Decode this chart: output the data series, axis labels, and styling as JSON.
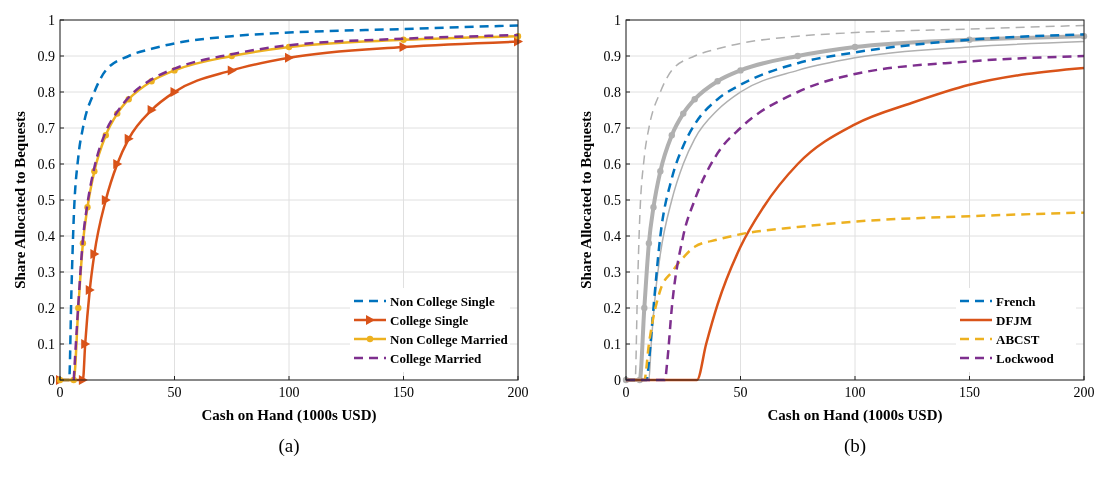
{
  "chart_data": [
    {
      "type": "line",
      "xlabel": "Cash on Hand (1000s USD)",
      "ylabel": "Share Allocated to Bequests",
      "annotations": [
        "(a)"
      ],
      "xlim": [
        0,
        200
      ],
      "xticks": [
        0,
        50,
        100,
        150,
        200
      ],
      "ylim": [
        0,
        1
      ],
      "yticks": [
        0,
        0.1,
        0.2,
        0.3,
        0.4,
        0.5,
        0.6,
        0.7,
        0.8,
        0.9,
        1
      ],
      "grid": true,
      "legend": "bottom right",
      "series": [
        {
          "name": "Non College Single",
          "color": "#0072bd",
          "line_style": "dashed",
          "x": [
            0,
            4,
            5,
            6,
            8,
            10,
            15,
            20,
            30,
            40,
            50,
            75,
            100,
            150,
            200
          ],
          "values": [
            0,
            0,
            0.25,
            0.45,
            0.62,
            0.7,
            0.8,
            0.86,
            0.9,
            0.92,
            0.935,
            0.955,
            0.965,
            0.975,
            0.985
          ]
        },
        {
          "name": "College Single",
          "color": "#d95319",
          "line_style": "solid",
          "marker": "triangle",
          "x": [
            0,
            10,
            11,
            13,
            15,
            20,
            25,
            30,
            40,
            50,
            75,
            100,
            150,
            200
          ],
          "values": [
            0,
            0,
            0.1,
            0.25,
            0.35,
            0.5,
            0.6,
            0.67,
            0.75,
            0.8,
            0.86,
            0.895,
            0.925,
            0.94
          ]
        },
        {
          "name": "Non College Married",
          "color": "#edb120",
          "line_style": "solid",
          "marker": "circle",
          "x": [
            0,
            6,
            8,
            10,
            12,
            15,
            20,
            25,
            30,
            40,
            50,
            75,
            100,
            150,
            200
          ],
          "values": [
            0,
            0,
            0.2,
            0.38,
            0.48,
            0.58,
            0.68,
            0.74,
            0.78,
            0.83,
            0.86,
            0.9,
            0.925,
            0.945,
            0.955
          ]
        },
        {
          "name": "College Married",
          "color": "#7e2f8e",
          "line_style": "dashed",
          "x": [
            6,
            8,
            10,
            12,
            15,
            20,
            25,
            30,
            40,
            50,
            75,
            100,
            150,
            200
          ],
          "values": [
            0,
            0.21,
            0.39,
            0.49,
            0.59,
            0.69,
            0.745,
            0.785,
            0.835,
            0.865,
            0.905,
            0.93,
            0.948,
            0.958
          ]
        }
      ]
    },
    {
      "type": "line",
      "xlabel": "Cash on Hand (1000s USD)",
      "ylabel": "Share Allocated to Bequests",
      "annotations": [
        "(b)"
      ],
      "xlim": [
        0,
        200
      ],
      "xticks": [
        0,
        50,
        100,
        150,
        200
      ],
      "ylim": [
        0,
        1
      ],
      "yticks": [
        0,
        0.1,
        0.2,
        0.3,
        0.4,
        0.5,
        0.6,
        0.7,
        0.8,
        0.9,
        1
      ],
      "grid": true,
      "legend": "bottom right",
      "series": [
        {
          "color": "#b0b0b0",
          "line_style": "dashed",
          "x": [
            0,
            4,
            5,
            6,
            8,
            10,
            15,
            20,
            30,
            40,
            50,
            75,
            100,
            150,
            200
          ],
          "values": [
            0,
            0,
            0.25,
            0.45,
            0.62,
            0.7,
            0.8,
            0.86,
            0.9,
            0.92,
            0.935,
            0.955,
            0.965,
            0.975,
            0.985
          ]
        },
        {
          "color": "#b0b0b0",
          "line_style": "solid",
          "x": [
            0,
            10,
            11,
            13,
            15,
            20,
            25,
            30,
            40,
            50,
            75,
            100,
            150,
            200
          ],
          "values": [
            0,
            0,
            0.1,
            0.25,
            0.35,
            0.5,
            0.6,
            0.67,
            0.75,
            0.8,
            0.86,
            0.895,
            0.925,
            0.94
          ]
        },
        {
          "color": "#b0b0b0",
          "line_style": "solid",
          "marker": "circle",
          "x": [
            0,
            6,
            8,
            10,
            12,
            15,
            20,
            25,
            30,
            40,
            50,
            75,
            100,
            150,
            200
          ],
          "values": [
            0,
            0,
            0.2,
            0.38,
            0.48,
            0.58,
            0.68,
            0.74,
            0.78,
            0.83,
            0.86,
            0.9,
            0.925,
            0.945,
            0.955
          ]
        },
        {
          "name": "French",
          "color": "#0072bd",
          "line_style": "dashed",
          "x": [
            0,
            9,
            10,
            12,
            15,
            20,
            25,
            30,
            40,
            50,
            75,
            100,
            150,
            200
          ],
          "values": [
            0,
            0,
            0.05,
            0.2,
            0.4,
            0.56,
            0.65,
            0.71,
            0.78,
            0.82,
            0.88,
            0.91,
            0.945,
            0.96
          ]
        },
        {
          "name": "DFJM",
          "color": "#d95319",
          "line_style": "solid",
          "x": [
            0,
            31,
            35,
            40,
            50,
            60,
            75,
            100,
            125,
            150,
            175,
            200
          ],
          "values": [
            0,
            0,
            0.1,
            0.21,
            0.37,
            0.48,
            0.6,
            0.71,
            0.77,
            0.82,
            0.85,
            0.867
          ]
        },
        {
          "name": "ABCST",
          "color": "#edb120",
          "line_style": "dashed",
          "x": [
            0,
            8,
            10,
            15,
            20,
            25,
            30,
            40,
            50,
            75,
            100,
            150,
            200
          ],
          "values": [
            0,
            0,
            0.1,
            0.25,
            0.3,
            0.34,
            0.37,
            0.39,
            0.405,
            0.425,
            0.44,
            0.455,
            0.465
          ]
        },
        {
          "name": "Lockwood",
          "color": "#7e2f8e",
          "line_style": "dashed",
          "x": [
            0,
            17,
            18,
            20,
            25,
            30,
            40,
            50,
            75,
            100,
            150,
            200
          ],
          "values": [
            0,
            0,
            0.05,
            0.2,
            0.4,
            0.5,
            0.63,
            0.7,
            0.8,
            0.85,
            0.885,
            0.9
          ]
        }
      ]
    }
  ]
}
